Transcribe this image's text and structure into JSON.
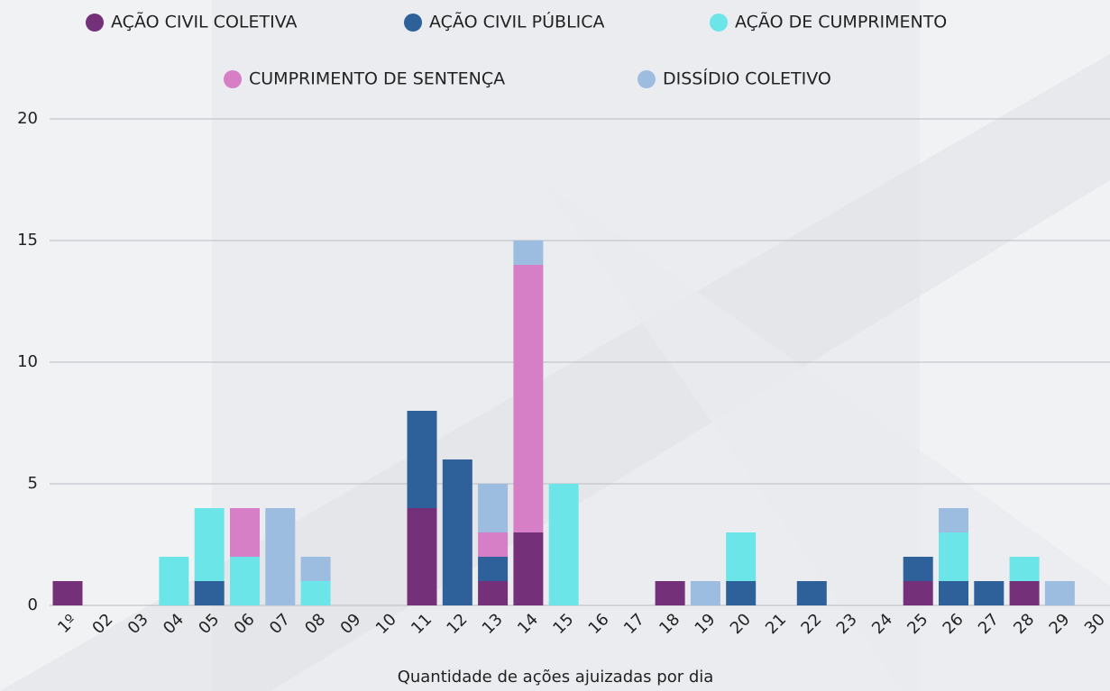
{
  "chart_data": {
    "type": "bar",
    "stacked": true,
    "x_label": "Quantidade de ações ajuizadas por dia",
    "categories": [
      "1º",
      "02",
      "03",
      "04",
      "05",
      "06",
      "07",
      "08",
      "09",
      "10",
      "11",
      "12",
      "13",
      "14",
      "15",
      "16",
      "17",
      "18",
      "19",
      "20",
      "21",
      "22",
      "23",
      "24",
      "25",
      "26",
      "27",
      "28",
      "29",
      "30"
    ],
    "series": [
      {
        "name": "AÇÃO CIVIL COLETIVA",
        "color": "#74317a",
        "values": [
          1,
          0,
          0,
          0,
          0,
          0,
          0,
          0,
          0,
          0,
          4,
          0,
          1,
          3,
          0,
          0,
          0,
          1,
          0,
          0,
          0,
          0,
          0,
          0,
          1,
          0,
          0,
          1,
          0,
          0
        ]
      },
      {
        "name": "AÇÃO CIVIL PÚBLICA",
        "color": "#2e6099",
        "values": [
          0,
          0,
          0,
          0,
          1,
          0,
          0,
          0,
          0,
          0,
          4,
          6,
          1,
          0,
          0,
          0,
          0,
          0,
          0,
          1,
          0,
          1,
          0,
          0,
          1,
          1,
          1,
          0,
          0,
          0
        ]
      },
      {
        "name": "AÇÃO DE CUMPRIMENTO",
        "color": "#6ce5e8",
        "values": [
          0,
          0,
          0,
          2,
          3,
          2,
          0,
          1,
          0,
          0,
          0,
          0,
          0,
          0,
          5,
          0,
          0,
          0,
          0,
          2,
          0,
          0,
          0,
          0,
          0,
          2,
          0,
          1,
          0,
          0
        ]
      },
      {
        "name": "CUMPRIMENTO DE SENTENÇA",
        "color": "#d67ec6",
        "values": [
          0,
          0,
          0,
          0,
          0,
          2,
          0,
          0,
          0,
          0,
          0,
          0,
          1,
          11,
          0,
          0,
          0,
          0,
          0,
          0,
          0,
          0,
          0,
          0,
          0,
          0,
          0,
          0,
          0,
          0
        ]
      },
      {
        "name": "DISSÍDIO COLETIVO",
        "color": "#9dbde0",
        "values": [
          0,
          0,
          0,
          0,
          0,
          0,
          4,
          1,
          0,
          0,
          0,
          0,
          2,
          1,
          0,
          0,
          0,
          0,
          1,
          0,
          0,
          0,
          0,
          0,
          0,
          1,
          0,
          0,
          1,
          0
        ]
      }
    ],
    "ylim": [
      0,
      20
    ],
    "yticks": [
      0,
      5,
      10,
      15,
      20
    ],
    "grid": true
  }
}
